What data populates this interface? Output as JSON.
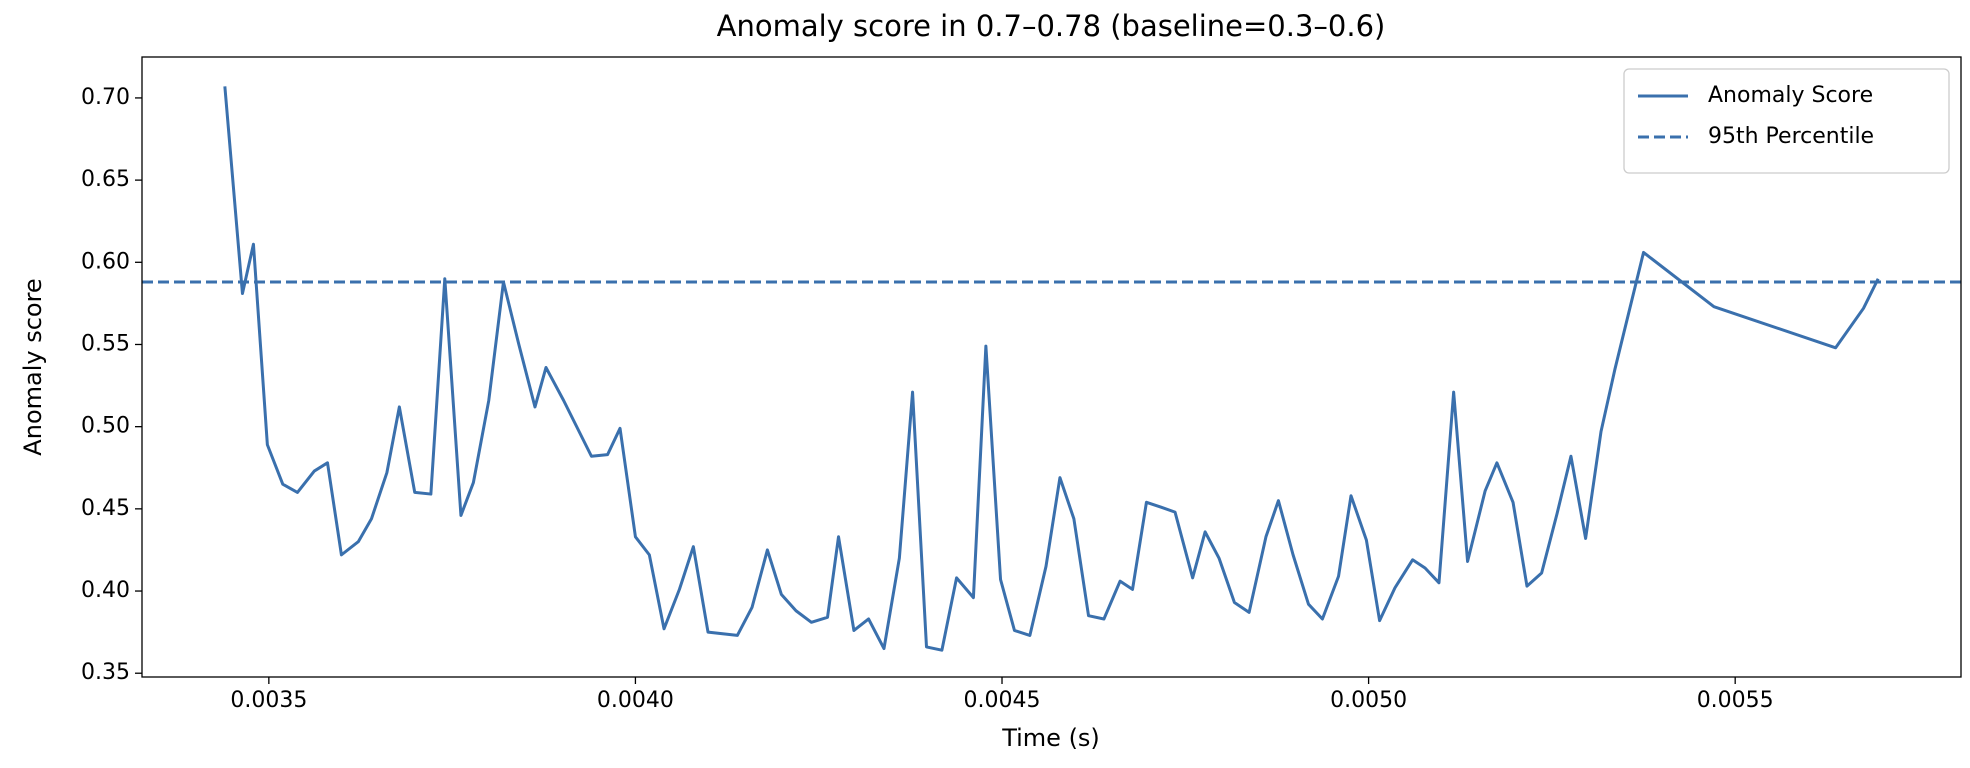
{
  "chart_data": {
    "type": "line",
    "title": "Anomaly score in 0.7–0.78 (baseline=0.3–0.6)",
    "x_label": "Time (s)",
    "y_label": "Anomaly score",
    "x": [
      0.00344,
      0.003464,
      0.003479,
      0.003498,
      0.003519,
      0.003539,
      0.003562,
      0.00358,
      0.003599,
      0.003622,
      0.00364,
      0.003661,
      0.003678,
      0.003699,
      0.003721,
      0.00374,
      0.003762,
      0.003779,
      0.0038,
      0.00382,
      0.003841,
      0.003863,
      0.003878,
      0.003902,
      0.00394,
      0.003962,
      0.003979,
      0.004,
      0.004019,
      0.004039,
      0.00406,
      0.004079,
      0.004099,
      0.004139,
      0.004159,
      0.00418,
      0.004199,
      0.004219,
      0.00424,
      0.004262,
      0.004277,
      0.004298,
      0.004318,
      0.004339,
      0.00436,
      0.004378,
      0.004397,
      0.004418,
      0.004438,
      0.004461,
      0.004478,
      0.004498,
      0.004517,
      0.004538,
      0.00456,
      0.004579,
      0.004598,
      0.004618,
      0.004639,
      0.004661,
      0.004678,
      0.004697,
      0.004717,
      0.004736,
      0.00476,
      0.004777,
      0.004796,
      0.004817,
      0.004837,
      0.00486,
      0.004877,
      0.004897,
      0.004918,
      0.004937,
      0.004959,
      0.004976,
      0.004997,
      0.005015,
      0.005036,
      0.00506,
      0.005077,
      0.005096,
      0.005116,
      0.005135,
      0.005159,
      0.005175,
      0.005197,
      0.005216,
      0.005236,
      0.005257,
      0.005276,
      0.005296,
      0.005317,
      0.005336,
      0.005375,
      0.005471,
      0.005637,
      0.005675,
      0.005695
    ],
    "series": [
      {
        "name": "Anomaly Score",
        "color": "#3a70ad",
        "values": [
          0.707,
          0.581,
          0.611,
          0.489,
          0.465,
          0.46,
          0.473,
          0.478,
          0.422,
          0.43,
          0.444,
          0.472,
          0.512,
          0.46,
          0.459,
          0.59,
          0.446,
          0.466,
          0.516,
          0.588,
          0.55,
          0.512,
          0.536,
          0.516,
          0.482,
          0.483,
          0.499,
          0.433,
          0.422,
          0.377,
          0.401,
          0.427,
          0.375,
          0.373,
          0.39,
          0.425,
          0.398,
          0.388,
          0.381,
          0.384,
          0.433,
          0.376,
          0.383,
          0.365,
          0.42,
          0.521,
          0.366,
          0.364,
          0.408,
          0.396,
          0.549,
          0.407,
          0.376,
          0.373,
          0.415,
          0.469,
          0.444,
          0.385,
          0.383,
          0.406,
          0.401,
          0.454,
          0.451,
          0.448,
          0.408,
          0.436,
          0.42,
          0.393,
          0.387,
          0.433,
          0.455,
          0.422,
          0.392,
          0.383,
          0.409,
          0.458,
          0.431,
          0.382,
          0.402,
          0.419,
          0.414,
          0.405,
          0.521,
          0.418,
          0.461,
          0.478,
          0.454,
          0.403,
          0.411,
          0.447,
          0.482,
          0.432,
          0.497,
          0.535,
          0.606,
          0.573,
          0.548,
          0.572,
          0.59
        ]
      }
    ],
    "threshold": {
      "name": "95th Percentile",
      "value": 0.588,
      "color": "#3a70ad"
    },
    "xlim": [
      0.003327,
      0.005808
    ],
    "ylim": [
      0.3477,
      0.7249
    ],
    "xticks": [
      0.0035,
      {
        "value": 0.004,
        "label": "0.0040"
      },
      0.0045,
      {
        "value": 0.005,
        "label": "0.0050"
      },
      0.0055
    ],
    "yticks": [
      0.35,
      {
        "value": 0.4,
        "label": "0.40"
      },
      0.45,
      {
        "value": 0.5,
        "label": "0.50"
      },
      0.55,
      {
        "value": 0.6,
        "label": "0.60"
      },
      0.65,
      {
        "value": 0.7,
        "label": "0.70"
      }
    ],
    "grid": false,
    "legend": "upper right"
  }
}
